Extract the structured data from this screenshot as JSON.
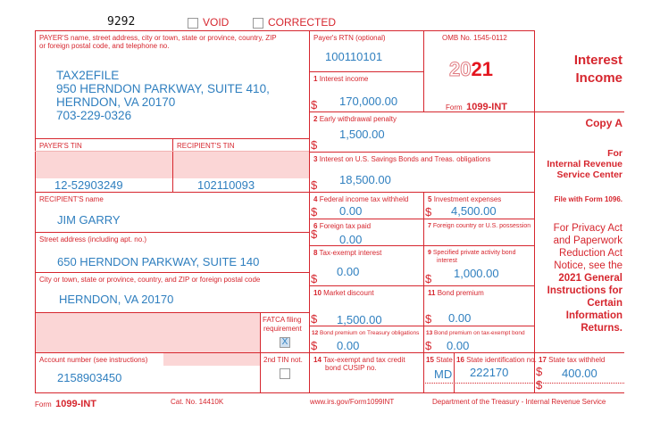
{
  "header": {
    "id_code": "9292",
    "void_label": "VOID",
    "corrected_label": "CORRECTED"
  },
  "payer": {
    "label": "PAYER'S name, street address, city or town, state or province, country, ZIP",
    "label2": "or foreign postal code, and telephone no.",
    "name": "TAX2EFILE",
    "street": "950 HERNDON PARKWAY, SUITE 410,",
    "city": "HERNDON, VA 20170",
    "phone": "703-229-0326"
  },
  "payer_tin": {
    "label": "PAYER'S TIN",
    "value": "12-52903249"
  },
  "recipient_tin": {
    "label": "RECIPIENT'S TIN",
    "value": "102110093"
  },
  "recipient": {
    "name_label": "RECIPIENT'S name",
    "name": "JIM GARRY",
    "street_label": "Street address (including apt. no.)",
    "street": "650 HERNDON PARKWAY, SUITE 140",
    "city_label": "City or town, state or province, country, and ZIP or foreign postal code",
    "city": "HERNDON, VA 20170"
  },
  "fatca": {
    "label1": "FATCA filing",
    "label2": "requirement",
    "checked": true,
    "mark": "X"
  },
  "account": {
    "label": "Account number (see instructions)",
    "value": "2158903450"
  },
  "second_tin": {
    "label": "2nd TIN not.",
    "checked": false
  },
  "rtn": {
    "label": "Payer's RTN (optional)",
    "value": "100110101"
  },
  "omb": {
    "label": "OMB No. 1545-0112",
    "year_outline": "20",
    "year_bold": "21",
    "form_prefix": "Form",
    "form_name": "1099-INT"
  },
  "currency": "$",
  "boxes": {
    "b1": {
      "num": "1",
      "label": "Interest income",
      "value": "170,000.00"
    },
    "b2": {
      "num": "2",
      "label": "Early withdrawal penalty",
      "value": "1,500.00"
    },
    "b3": {
      "num": "3",
      "label": "Interest on U.S. Savings Bonds and Treas. obligations",
      "value": "18,500.00"
    },
    "b4": {
      "num": "4",
      "label": "Federal income tax withheld",
      "value": "0.00"
    },
    "b5": {
      "num": "5",
      "label": "Investment expenses",
      "value": "4,500.00"
    },
    "b6": {
      "num": "6",
      "label": "Foreign tax paid",
      "value": "0.00"
    },
    "b7": {
      "num": "7",
      "label": "Foreign country or U.S. possession",
      "value": ""
    },
    "b8": {
      "num": "8",
      "label": "Tax-exempt interest",
      "value": "0.00"
    },
    "b9": {
      "num": "9",
      "label": "Specified private activity bond",
      "label2": "interest",
      "value": "1,000.00"
    },
    "b10": {
      "num": "10",
      "label": "Market discount",
      "value": "1,500.00"
    },
    "b11": {
      "num": "11",
      "label": "Bond premium",
      "value": "0.00"
    },
    "b12": {
      "num": "12",
      "label": "Bond premium on Treasury obligations",
      "value": "0.00"
    },
    "b13": {
      "num": "13",
      "label": "Bond premium on tax-exempt bond",
      "value": "0.00"
    },
    "b14": {
      "num": "14",
      "label": "Tax-exempt and tax credit",
      "label2": "bond CUSIP no.",
      "value": ""
    },
    "b15": {
      "num": "15",
      "label": "State",
      "value": "MD"
    },
    "b16": {
      "num": "16",
      "label": "State identification no.",
      "value": "222170"
    },
    "b17": {
      "num": "17",
      "label": "State tax withheld",
      "value": "400.00"
    }
  },
  "side": {
    "title1": "Interest",
    "title2": "Income",
    "copy": "Copy A",
    "for1": "For",
    "for2": "Internal Revenue",
    "for3": "Service Center",
    "file_with": "File with Form 1096.",
    "privacy1": "For Privacy Act",
    "privacy2": "and Paperwork",
    "privacy3": "Reduction Act",
    "privacy4": "Notice, see the",
    "privacy5": "2021 General",
    "privacy6": "Instructions for",
    "privacy7": "Certain",
    "privacy8": "Information",
    "privacy9": "Returns."
  },
  "footer": {
    "form_prefix": "Form",
    "form_name": "1099-INT",
    "cat": "Cat. No. 14410K",
    "url": "www.irs.gov/Form1099INT",
    "dept": "Department of the Treasury - Internal Revenue Service"
  }
}
